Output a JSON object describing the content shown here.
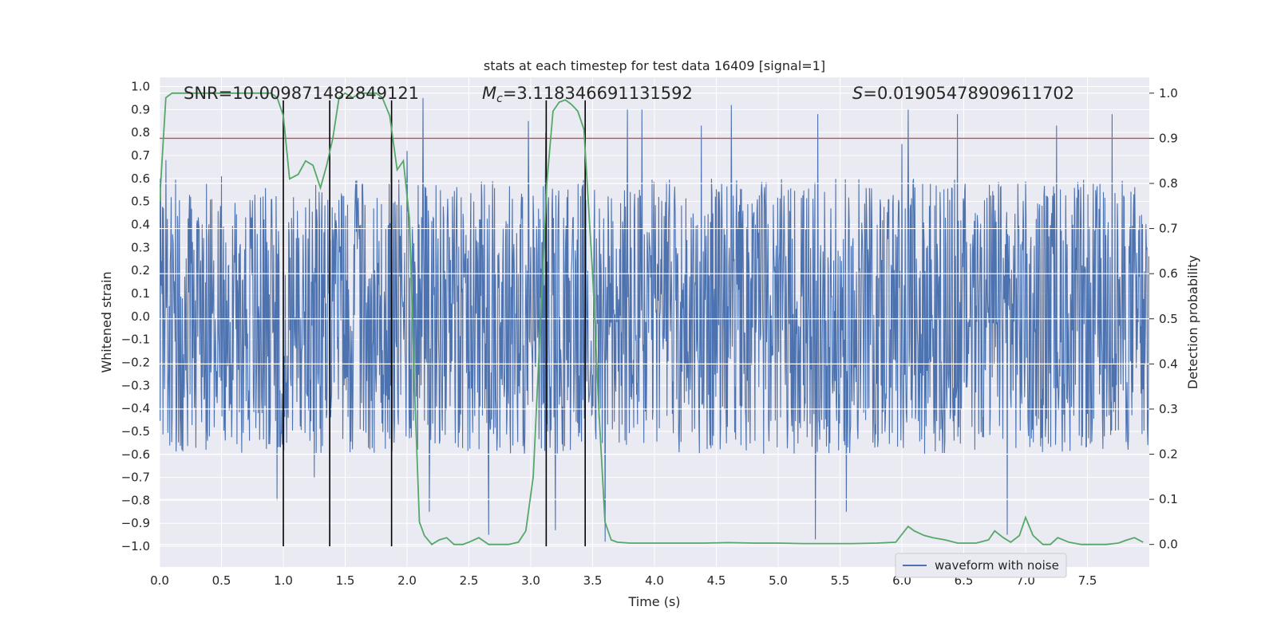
{
  "chart_data": {
    "type": "line",
    "title": "stats at each timestep for test data 16409 [signal=1]",
    "xlabel": "Time (s)",
    "ylabel_left": "Whitened strain",
    "ylabel_right": "Detection probability",
    "xlim": [
      0.0,
      8.0
    ],
    "ylim_left": [
      -1.09,
      1.04
    ],
    "ylim_right": [
      -0.05,
      1.035
    ],
    "x_ticks": [
      "0.0",
      "0.5",
      "1.0",
      "1.5",
      "2.0",
      "2.5",
      "3.0",
      "3.5",
      "4.0",
      "4.5",
      "5.0",
      "5.5",
      "6.0",
      "6.5",
      "7.0",
      "7.5"
    ],
    "y_ticks_left": [
      "1.0",
      "0.9",
      "0.8",
      "0.7",
      "0.6",
      "0.5",
      "0.4",
      "0.3",
      "0.2",
      "0.1",
      "0.0",
      "−0.1",
      "−0.2",
      "−0.3",
      "−0.4",
      "−0.5",
      "−0.6",
      "−0.7",
      "−0.8",
      "−0.9",
      "−1.0"
    ],
    "y_ticks_right": [
      "1.0",
      "0.9",
      "0.8",
      "0.7",
      "0.6",
      "0.5",
      "0.4",
      "0.3",
      "0.2",
      "0.1",
      "0.0"
    ],
    "annotations": {
      "snr": "SNR=10.009871482849121",
      "mc_symbol": "M",
      "mc_sub": "c",
      "mc_value": "=3.118346691131592",
      "s_symbol": "S",
      "s_value": "=0.01905478909611702"
    },
    "legend": {
      "label": "waveform with noise",
      "position": "lower-right"
    },
    "threshold_right": 0.9,
    "vertical_markers_s": [
      1.0,
      1.375,
      1.875,
      3.125,
      3.44
    ],
    "waveform": {
      "name": "waveform with noise",
      "color": "#4c72b0",
      "samples": 2048,
      "band_max": 0.6,
      "band_min": -0.6,
      "spikes": [
        {
          "t": 0.05,
          "v": 0.68
        },
        {
          "t": 0.25,
          "v": 0.52
        },
        {
          "t": 0.5,
          "v": 0.61
        },
        {
          "t": 0.95,
          "v": -0.8
        },
        {
          "t": 1.87,
          "v": 0.78
        },
        {
          "t": 2.0,
          "v": 0.72
        },
        {
          "t": 2.13,
          "v": 0.95
        },
        {
          "t": 2.18,
          "v": -0.85
        },
        {
          "t": 2.66,
          "v": -0.95
        },
        {
          "t": 2.98,
          "v": 0.85
        },
        {
          "t": 3.12,
          "v": 0.8
        },
        {
          "t": 3.2,
          "v": -0.93
        },
        {
          "t": 3.6,
          "v": -0.98
        },
        {
          "t": 3.78,
          "v": 0.9
        },
        {
          "t": 3.9,
          "v": 0.9
        },
        {
          "t": 4.38,
          "v": 0.83
        },
        {
          "t": 4.62,
          "v": 0.92
        },
        {
          "t": 5.3,
          "v": -0.97
        },
        {
          "t": 5.32,
          "v": 0.88
        },
        {
          "t": 5.55,
          "v": -0.85
        },
        {
          "t": 6.0,
          "v": 0.75
        },
        {
          "t": 6.05,
          "v": 0.9
        },
        {
          "t": 6.45,
          "v": 0.88
        },
        {
          "t": 6.85,
          "v": -0.95
        },
        {
          "t": 7.25,
          "v": 0.83
        },
        {
          "t": 7.7,
          "v": 0.88
        },
        {
          "t": 1.25,
          "v": -0.7
        }
      ]
    },
    "detection_probability": {
      "name": "detection probability",
      "color": "#55a868",
      "x": [
        0.0,
        0.05,
        0.1,
        0.2,
        0.3,
        0.4,
        0.5,
        0.6,
        0.7,
        0.8,
        0.9,
        0.95,
        1.0,
        1.05,
        1.12,
        1.18,
        1.24,
        1.3,
        1.35,
        1.4,
        1.45,
        1.5,
        1.56,
        1.62,
        1.68,
        1.75,
        1.8,
        1.86,
        1.92,
        1.97,
        2.02,
        2.06,
        2.1,
        2.14,
        2.2,
        2.26,
        2.32,
        2.38,
        2.45,
        2.5,
        2.58,
        2.66,
        2.74,
        2.82,
        2.9,
        2.96,
        3.02,
        3.08,
        3.13,
        3.18,
        3.23,
        3.28,
        3.33,
        3.38,
        3.43,
        3.5,
        3.55,
        3.6,
        3.65,
        3.7,
        3.8,
        4.0,
        4.2,
        4.4,
        4.6,
        4.8,
        5.0,
        5.2,
        5.4,
        5.6,
        5.8,
        5.95,
        6.05,
        6.1,
        6.18,
        6.25,
        6.35,
        6.45,
        6.6,
        6.7,
        6.75,
        6.82,
        6.88,
        6.95,
        7.0,
        7.06,
        7.14,
        7.2,
        7.26,
        7.35,
        7.45,
        7.55,
        7.65,
        7.75,
        7.82,
        7.88,
        7.95
      ],
      "y": [
        0.76,
        0.99,
        1.0,
        1.0,
        1.0,
        1.0,
        1.0,
        1.0,
        1.0,
        1.0,
        1.0,
        0.99,
        0.95,
        0.81,
        0.82,
        0.85,
        0.84,
        0.79,
        0.84,
        0.9,
        0.99,
        1.0,
        0.99,
        1.0,
        1.0,
        1.0,
        0.99,
        0.95,
        0.83,
        0.85,
        0.72,
        0.35,
        0.05,
        0.02,
        0.0,
        0.01,
        0.015,
        0.0,
        0.0,
        0.005,
        0.015,
        0.0,
        0.0,
        0.0,
        0.005,
        0.03,
        0.15,
        0.5,
        0.8,
        0.96,
        0.98,
        0.985,
        0.975,
        0.96,
        0.92,
        0.6,
        0.3,
        0.05,
        0.01,
        0.005,
        0.003,
        0.003,
        0.003,
        0.003,
        0.004,
        0.003,
        0.003,
        0.002,
        0.002,
        0.002,
        0.003,
        0.005,
        0.04,
        0.03,
        0.02,
        0.015,
        0.01,
        0.003,
        0.003,
        0.01,
        0.03,
        0.015,
        0.005,
        0.02,
        0.06,
        0.02,
        0.0,
        0.0,
        0.015,
        0.005,
        0.0,
        0.0,
        0.0,
        0.003,
        0.01,
        0.015,
        0.005
      ]
    },
    "threshold_color": "#c44e52"
  }
}
